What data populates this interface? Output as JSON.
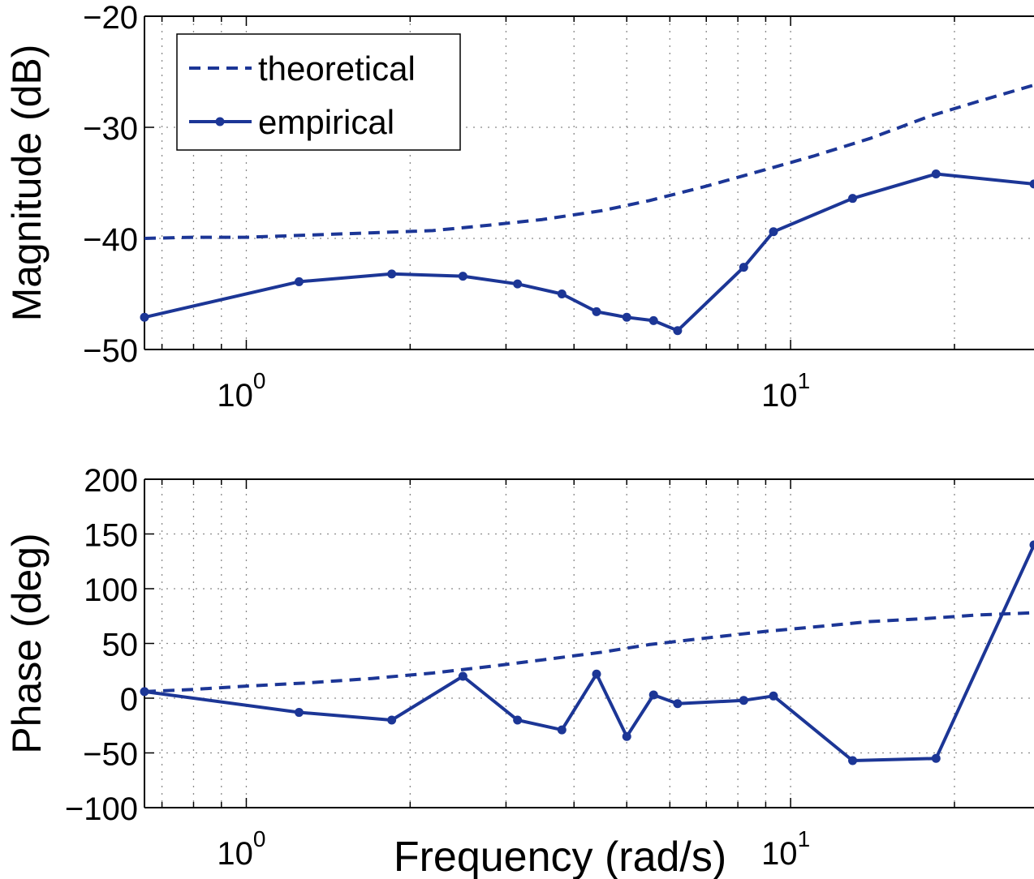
{
  "chart_data": [
    {
      "type": "line",
      "xscale": "log",
      "xlim": [
        0.65,
        28
      ],
      "ylim": [
        -50,
        -20
      ],
      "ylabel": "Magnitude (dB)",
      "xlabel": "",
      "grid": true,
      "yticks": [
        -50,
        -40,
        -30,
        -20
      ],
      "ytick_labels": [
        "−50",
        "−40",
        "−30",
        "−20"
      ],
      "xtick_labels": [
        {
          "base": "10",
          "exp": "0",
          "value": 1
        },
        {
          "base": "10",
          "exp": "1",
          "value": 10
        }
      ],
      "legend_position": "top-left",
      "color": "#1c3696",
      "series": [
        {
          "name": "theoretical",
          "style": "dashed",
          "x": [
            0.65,
            0.8,
            1.0,
            1.3,
            1.7,
            2.2,
            2.8,
            3.5,
            4.5,
            5.5,
            7.0,
            9.0,
            11.0,
            14.0,
            18.0,
            22.0,
            28.0
          ],
          "y": [
            -40.0,
            -39.9,
            -39.9,
            -39.7,
            -39.5,
            -39.3,
            -38.8,
            -38.3,
            -37.5,
            -36.6,
            -35.3,
            -33.8,
            -32.6,
            -31.0,
            -29.0,
            -27.7,
            -26.2
          ]
        },
        {
          "name": "empirical",
          "style": "solid-markers",
          "x": [
            0.65,
            1.25,
            1.85,
            2.5,
            3.15,
            3.8,
            4.4,
            5.0,
            5.6,
            6.2,
            8.2,
            9.3,
            13.0,
            18.5,
            28.0
          ],
          "y": [
            -47.1,
            -43.9,
            -43.2,
            -43.4,
            -44.1,
            -45.0,
            -46.6,
            -47.1,
            -47.4,
            -48.3,
            -42.6,
            -39.4,
            -36.4,
            -34.2,
            -35.1
          ]
        }
      ]
    },
    {
      "type": "line",
      "xscale": "log",
      "xlim": [
        0.65,
        28
      ],
      "ylim": [
        -100,
        200
      ],
      "ylabel": "Phase (deg)",
      "xlabel": "Frequency (rad/s)",
      "grid": true,
      "yticks": [
        -100,
        -50,
        0,
        50,
        100,
        150,
        200
      ],
      "ytick_labels": [
        "−100",
        "−50",
        "0",
        "50",
        "100",
        "150",
        "200"
      ],
      "xtick_labels": [
        {
          "base": "10",
          "exp": "0",
          "value": 1
        },
        {
          "base": "10",
          "exp": "1",
          "value": 10
        }
      ],
      "color": "#1c3696",
      "series": [
        {
          "name": "theoretical",
          "style": "dashed",
          "x": [
            0.65,
            0.8,
            1.0,
            1.3,
            1.7,
            2.2,
            2.8,
            3.5,
            4.5,
            5.5,
            7.0,
            9.0,
            11.0,
            14.0,
            18.0,
            22.0,
            28.0
          ],
          "y": [
            6,
            8,
            11,
            14,
            18,
            23,
            29,
            35,
            42,
            49,
            55,
            61,
            65,
            70,
            73,
            76,
            78
          ]
        },
        {
          "name": "empirical",
          "style": "solid-markers",
          "x": [
            0.65,
            1.25,
            1.85,
            2.5,
            3.15,
            3.8,
            4.4,
            5.0,
            5.6,
            6.2,
            8.2,
            9.3,
            13.0,
            18.5,
            28.0
          ],
          "y": [
            6,
            -13,
            -20,
            20,
            -20,
            -29,
            22,
            -35,
            3,
            -5,
            -2,
            2,
            -57,
            -55,
            140
          ]
        }
      ]
    }
  ]
}
